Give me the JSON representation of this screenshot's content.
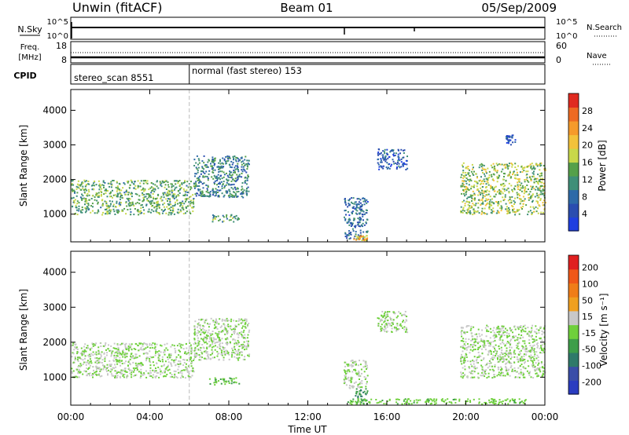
{
  "header": {
    "title": "Unwin (fitACF)",
    "beam": "Beam 01",
    "date": "05/Sep/2009"
  },
  "top_strips": {
    "nsky": {
      "label": "N.Sky",
      "ticks_left": [
        "10^5",
        "10^0"
      ],
      "ticks_right": [
        "10^5",
        "10^0"
      ],
      "right_label": "N.Search"
    },
    "freq": {
      "label_line1": "Freq.",
      "label_line2": "[MHz]",
      "ticks_left": [
        "18",
        "8"
      ],
      "ticks_right": [
        "60",
        "0"
      ],
      "right_label": "Nave"
    },
    "cpid": {
      "label": "CPID",
      "segments": [
        {
          "text": "stereo_scan 8551"
        },
        {
          "text": "normal (fast stereo) 153"
        }
      ]
    }
  },
  "chart_data": [
    {
      "type": "heatmap",
      "name": "power",
      "ylabel": "Slant Range [km]",
      "ylim": [
        200,
        4600
      ],
      "yticks": [
        1000,
        2000,
        3000,
        4000
      ],
      "xlim": [
        0,
        24
      ],
      "colorbar": {
        "label": "Power [dB]",
        "ticks": [
          4,
          8,
          12,
          16,
          20,
          24,
          28
        ],
        "range": [
          0,
          32
        ],
        "colors": [
          "#1f3fe0",
          "#2a4db0",
          "#2e6aa8",
          "#3f8f78",
          "#55a04a",
          "#c8d84a",
          "#f2c23a",
          "#f59a2a",
          "#ee6a22",
          "#e02a20"
        ]
      },
      "echo_regions": [
        {
          "hours": [
            0.0,
            6.2
          ],
          "range_km": [
            1000,
            2000
          ],
          "level": 14
        },
        {
          "hours": [
            6.2,
            9.0
          ],
          "range_km": [
            1500,
            2700
          ],
          "level": 10
        },
        {
          "hours": [
            7.0,
            8.5
          ],
          "range_km": [
            800,
            1000
          ],
          "level": 12
        },
        {
          "hours": [
            13.8,
            15.0
          ],
          "range_km": [
            300,
            1500
          ],
          "level": 8
        },
        {
          "hours": [
            14.3,
            15.0
          ],
          "range_km": [
            250,
            400
          ],
          "level": 22
        },
        {
          "hours": [
            15.5,
            17.0
          ],
          "range_km": [
            2300,
            2900
          ],
          "level": 6
        },
        {
          "hours": [
            19.7,
            24.0
          ],
          "range_km": [
            1000,
            2500
          ],
          "level": 16
        },
        {
          "hours": [
            22.0,
            22.5
          ],
          "range_km": [
            3000,
            3300
          ],
          "level": 5
        }
      ]
    },
    {
      "type": "heatmap",
      "name": "velocity",
      "ylabel": "Slant Range [km]",
      "ylim": [
        200,
        4600
      ],
      "yticks": [
        1000,
        2000,
        3000,
        4000
      ],
      "xlim": [
        0,
        24
      ],
      "colorbar": {
        "label": "Velocity [m s⁻¹]",
        "ticks": [
          "200",
          "100",
          "50",
          "15",
          "-15",
          "-50",
          "-100",
          "-200"
        ],
        "range": [
          -250,
          250
        ],
        "colors": [
          "#2a3cc0",
          "#3a4ea8",
          "#2f7a6a",
          "#3e9e4a",
          "#6fd03c",
          "#c8c8c8",
          "#f0a020",
          "#f07d18",
          "#f05818",
          "#e02020"
        ]
      },
      "echo_regions": [
        {
          "hours": [
            0.0,
            6.2
          ],
          "range_km": [
            1000,
            2000
          ],
          "level": 0
        },
        {
          "hours": [
            6.2,
            9.0
          ],
          "range_km": [
            1500,
            2700
          ],
          "level": 0
        },
        {
          "hours": [
            7.0,
            8.5
          ],
          "range_km": [
            800,
            1000
          ],
          "level": -40
        },
        {
          "hours": [
            13.8,
            15.0
          ],
          "range_km": [
            700,
            1500
          ],
          "level": 0
        },
        {
          "hours": [
            14.3,
            15.0
          ],
          "range_km": [
            300,
            700
          ],
          "level": -100
        },
        {
          "hours": [
            15.5,
            17.0
          ],
          "range_km": [
            2300,
            2900
          ],
          "level": 0
        },
        {
          "hours": [
            19.7,
            24.0
          ],
          "range_km": [
            1000,
            2500
          ],
          "level": 0
        },
        {
          "hours": [
            14.0,
            23.0
          ],
          "range_km": [
            250,
            400
          ],
          "level": -30
        }
      ]
    }
  ],
  "xaxis": {
    "label": "Time UT",
    "ticks": [
      "00:00",
      "04:00",
      "08:00",
      "12:00",
      "16:00",
      "20:00",
      "00:00"
    ],
    "tick_hours": [
      0,
      4,
      8,
      12,
      16,
      20,
      24
    ]
  },
  "mode_change_hour": 6.0
}
